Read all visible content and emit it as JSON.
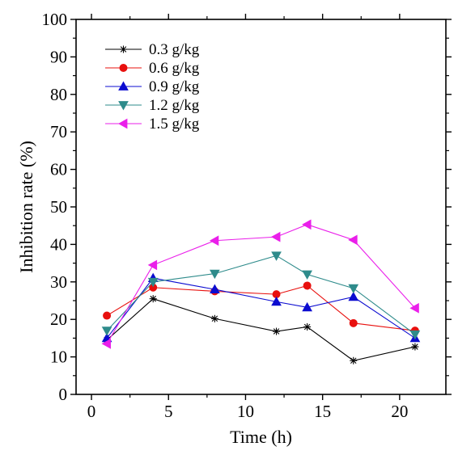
{
  "chart_data": {
    "type": "line",
    "title": "",
    "xlabel": "Time (h)",
    "ylabel": "Inhibition rate (%)",
    "xlim": [
      -1,
      23
    ],
    "ylim": [
      0,
      100
    ],
    "x_ticks": [
      0,
      5,
      10,
      15,
      20
    ],
    "y_ticks": [
      0,
      10,
      20,
      30,
      40,
      50,
      60,
      70,
      80,
      90,
      100
    ],
    "legend_position": "top-left",
    "grid": false,
    "x": [
      1,
      4,
      8,
      12,
      14,
      17,
      21
    ],
    "series": [
      {
        "name": "0.3 g/kg",
        "color": "#000000",
        "marker": "star",
        "values": [
          14.5,
          25.5,
          20.2,
          16.8,
          18.0,
          9.0,
          12.7
        ]
      },
      {
        "name": "0.6 g/kg",
        "color": "#e8100e",
        "marker": "circle",
        "values": [
          21.0,
          28.5,
          27.5,
          26.7,
          29.0,
          19.0,
          17.0
        ]
      },
      {
        "name": "0.9 g/kg",
        "color": "#0c0cd0",
        "marker": "triangle-up",
        "values": [
          15.0,
          31.0,
          28.0,
          24.7,
          23.2,
          26.0,
          15.0
        ]
      },
      {
        "name": "1.2 g/kg",
        "color": "#2e8b8b",
        "marker": "triangle-down",
        "values": [
          17.0,
          30.0,
          32.2,
          37.0,
          32.0,
          28.3,
          16.0
        ]
      },
      {
        "name": "1.5 g/kg",
        "color": "#ea1fea",
        "marker": "triangle-left",
        "values": [
          13.5,
          34.5,
          41.0,
          42.0,
          45.3,
          41.2,
          23.0
        ]
      }
    ]
  }
}
